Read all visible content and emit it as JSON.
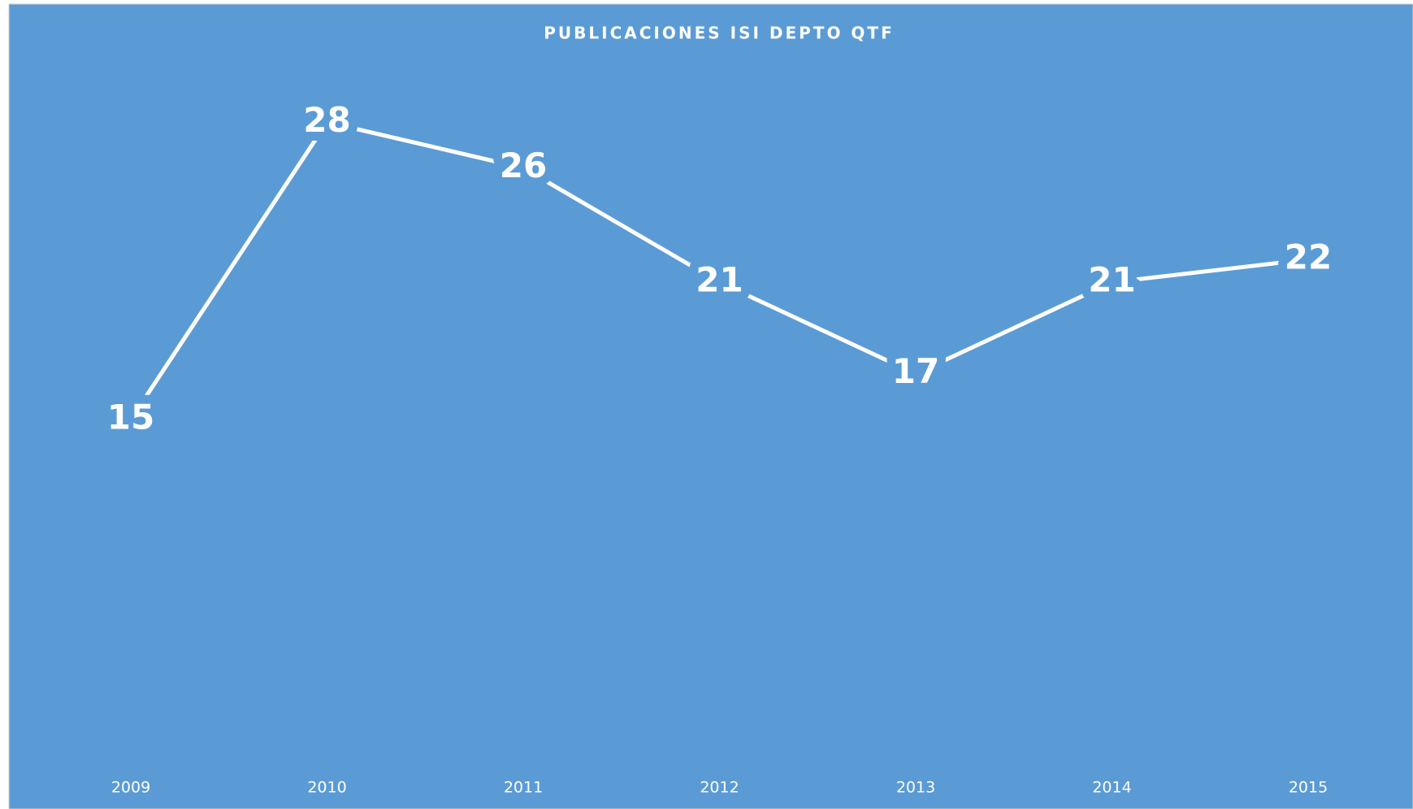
{
  "chart_data": {
    "type": "line",
    "title": "PUBLICACIONES ISI DEPTO QTF",
    "categories": [
      "2009",
      "2010",
      "2011",
      "2012",
      "2013",
      "2014",
      "2015"
    ],
    "values": [
      15,
      28,
      26,
      21,
      17,
      21,
      22
    ],
    "color": "#ffffff",
    "background": "#5b9bd5",
    "ylim": [
      0,
      30
    ],
    "drop_lines": true
  }
}
